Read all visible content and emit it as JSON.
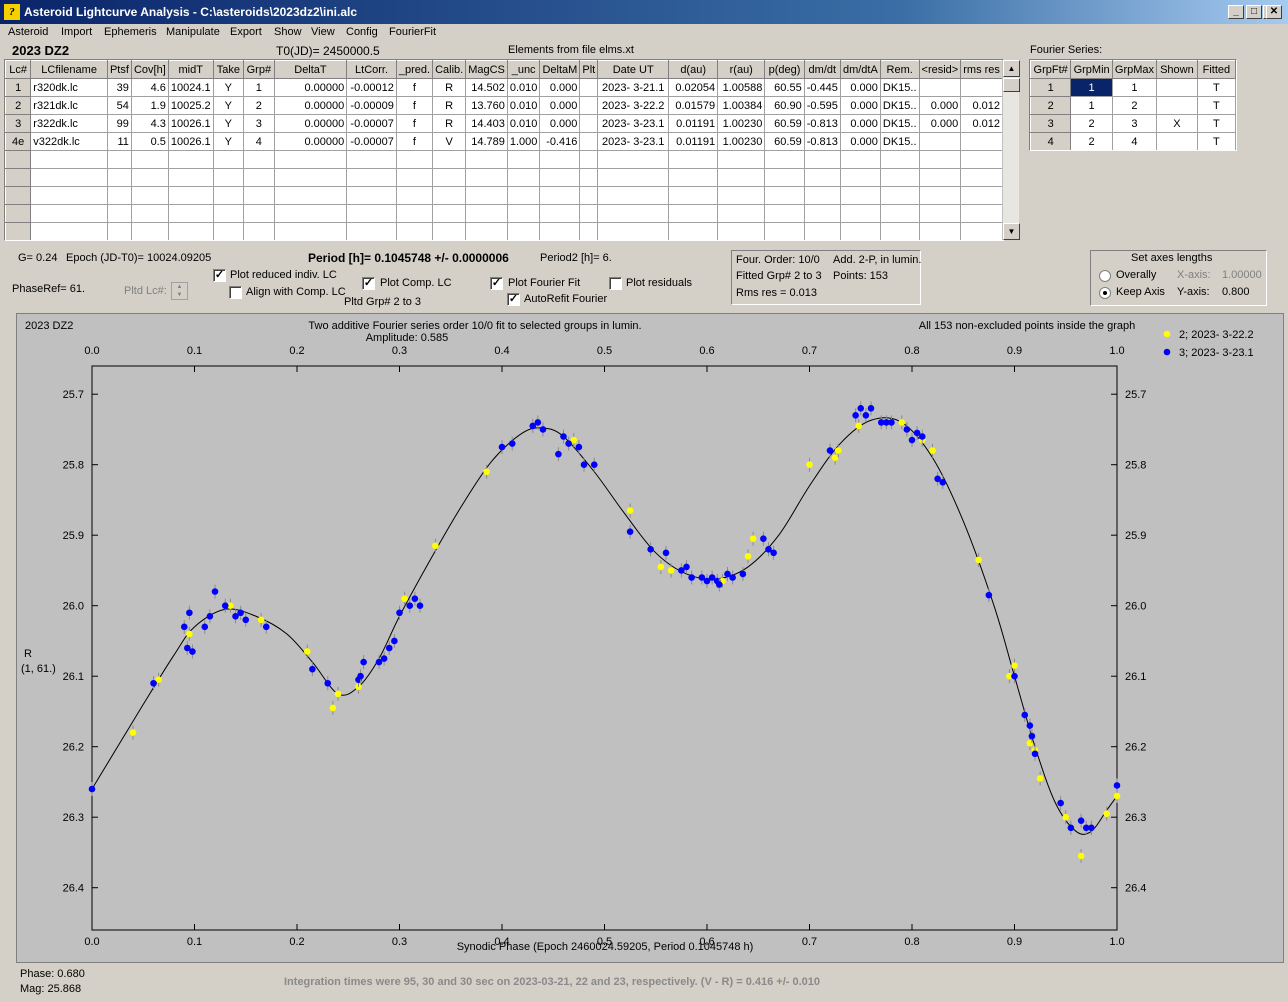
{
  "window": {
    "title": "Asteroid Lightcurve Analysis - C:\\asteroids\\2023dz2\\ini.alc",
    "icon": "app-logo-icon"
  },
  "menu": [
    "Asteroid",
    "Import",
    "Ephemeris",
    "Manipulate",
    "Export",
    "Show",
    "View",
    "Config",
    "FourierFit"
  ],
  "header": {
    "object_name": "2023 DZ2",
    "t0": "T0(JD)= 2450000.5",
    "elements_source": "Elements from file elms.xt"
  },
  "lc_table": {
    "columns": [
      "Lc#",
      "LCfilename",
      "Ptsf",
      "Cov[h]",
      "midT",
      "Take",
      "Grp#",
      "DeltaT",
      "LtCorr.",
      "_pred.",
      "Calib.",
      "MagCS",
      "_unc",
      "DeltaM",
      "Plt",
      "Date UT",
      "d(au)",
      "r(au)",
      "p(deg)",
      "dm/dt",
      "dm/dtA",
      "Rem.",
      "<resid>",
      "rms res"
    ],
    "rows": [
      [
        "1",
        "r320dk.lc",
        "39",
        "4.6",
        "10024.1",
        "Y",
        "1",
        "0.00000",
        "-0.00012",
        "f",
        "R",
        "14.502",
        "0.010",
        "0.000",
        "",
        "2023- 3-21.1",
        "0.02054",
        "1.00588",
        "60.55",
        "-0.445",
        "0.000",
        "DK15..",
        "",
        ""
      ],
      [
        "2",
        "r321dk.lc",
        "54",
        "1.9",
        "10025.2",
        "Y",
        "2",
        "0.00000",
        "-0.00009",
        "f",
        "R",
        "13.760",
        "0.010",
        "0.000",
        "",
        "2023- 3-22.2",
        "0.01579",
        "1.00384",
        "60.90",
        "-0.595",
        "0.000",
        "DK15..",
        "0.000",
        "0.012"
      ],
      [
        "3",
        "r322dk.lc",
        "99",
        "4.3",
        "10026.1",
        "Y",
        "3",
        "0.00000",
        "-0.00007",
        "f",
        "R",
        "14.403",
        "0.010",
        "0.000",
        "",
        "2023- 3-23.1",
        "0.01191",
        "1.00230",
        "60.59",
        "-0.813",
        "0.000",
        "DK15..",
        "0.000",
        "0.012"
      ],
      [
        "4e",
        "v322dk.lc",
        "11",
        "0.5",
        "10026.1",
        "Y",
        "4",
        "0.00000",
        "-0.00007",
        "f",
        "V",
        "14.789",
        "1.000",
        "-0.416",
        "",
        "2023- 3-23.1",
        "0.01191",
        "1.00230",
        "60.59",
        "-0.813",
        "0.000",
        "DK15..",
        "",
        ""
      ]
    ],
    "empty_rows": 5
  },
  "fourier_series": {
    "title": "Fourier Series:",
    "columns": [
      "GrpFt#",
      "GrpMin",
      "GrpMax",
      "Shown",
      "Fitted"
    ],
    "rows": [
      [
        "1",
        "1",
        "1",
        "",
        "T"
      ],
      [
        "2",
        "1",
        "2",
        "",
        "T"
      ],
      [
        "3",
        "2",
        "3",
        "X",
        "T"
      ],
      [
        "4",
        "2",
        "4",
        "",
        "T"
      ]
    ]
  },
  "info": {
    "g": "G= 0.24",
    "epoch": "Epoch (JD-T0)= 10024.09205",
    "period": "Period [h]= 0.1045748 +/- 0.0000006",
    "period2": "Period2 [h]= 6.",
    "phase_ref": "PhaseRef= 61.",
    "pltd_lc": "Pltd Lc#:",
    "pltd_grp": "Pltd Grp#  2  to  3"
  },
  "options": {
    "plot_reduced": {
      "label": "Plot reduced indiv. LC",
      "checked": true
    },
    "align_comp": {
      "label": "Align with Comp. LC",
      "checked": false
    },
    "plot_comp": {
      "label": "Plot Comp. LC",
      "checked": true
    },
    "plot_fourier": {
      "label": "Plot Fourier Fit",
      "checked": true
    },
    "autorefit": {
      "label": "AutoRefit Fourier",
      "checked": true
    },
    "plot_residuals": {
      "label": "Plot residuals",
      "checked": false
    }
  },
  "fit_info": {
    "order": "Four. Order: 10/0",
    "add": "Add. 2-P, in lumin.",
    "fitted": "Fitted Grp# 2 to 3",
    "points": "Points: 153",
    "rms": "Rms res     = 0.013"
  },
  "axes_box": {
    "title": "Set axes lengths",
    "overally": "Overally",
    "keep_axis": "Keep Axis",
    "x_label": "X-axis:",
    "x_value": "1.00000",
    "y_label": "Y-axis:",
    "y_value": "0.800",
    "selected": "keep_axis"
  },
  "status": {
    "phase": "Phase:  0.680",
    "mag": "Mag:    25.868",
    "integration": "Integration times were 95, 30 and 30 sec on 2023-03-21, 22 and 23, respectively.  (V - R) = 0.416 +/- 0.010"
  },
  "chart_data": {
    "type": "scatter",
    "object_label": "2023 DZ2",
    "title": "Two additive Fourier series order 10/0 fit to selected groups in lumin.",
    "subtitle": "Amplitude: 0.585",
    "note": "All 153 non-excluded points inside the graph",
    "xlabel": "Synodic Phase (Epoch 2460024.59205, Period 0.1045748 h)",
    "ylabel": "R",
    "ylabel2": "(1, 61.)",
    "xlim": [
      0.0,
      1.0
    ],
    "ylim": [
      26.46,
      25.66
    ],
    "y_inverted": true,
    "xticks": [
      0.0,
      0.1,
      0.2,
      0.3,
      0.4,
      0.5,
      0.6,
      0.7,
      0.8,
      0.9,
      1.0
    ],
    "xtick_labels": [
      "0.0",
      "0.1",
      "0.2",
      "0.3",
      "0.4",
      "0.5",
      "0.6",
      "0.7",
      "0.8",
      "0.9",
      "1.0"
    ],
    "yticks": [
      25.7,
      25.8,
      25.9,
      26.0,
      26.1,
      26.2,
      26.3,
      26.4
    ],
    "ytick_labels": [
      "25.7",
      "25.8",
      "25.9",
      "26.0",
      "26.1",
      "26.2",
      "26.3",
      "26.4"
    ],
    "grid": false,
    "legend_position": "top-right",
    "series": [
      {
        "name": "2; 2023- 3-22.2",
        "color": "#ffff00",
        "points": [
          [
            0.04,
            26.18
          ],
          [
            0.065,
            26.105
          ],
          [
            0.095,
            26.04
          ],
          [
            0.135,
            26.0
          ],
          [
            0.165,
            26.02
          ],
          [
            0.21,
            26.065
          ],
          [
            0.235,
            26.145
          ],
          [
            0.24,
            26.125
          ],
          [
            0.26,
            26.115
          ],
          [
            0.305,
            25.99
          ],
          [
            0.335,
            25.915
          ],
          [
            0.385,
            25.81
          ],
          [
            0.47,
            25.765
          ],
          [
            0.525,
            25.865
          ],
          [
            0.555,
            25.945
          ],
          [
            0.565,
            25.95
          ],
          [
            0.615,
            25.965
          ],
          [
            0.64,
            25.93
          ],
          [
            0.645,
            25.905
          ],
          [
            0.7,
            25.8
          ],
          [
            0.725,
            25.79
          ],
          [
            0.728,
            25.78
          ],
          [
            0.748,
            25.745
          ],
          [
            0.79,
            25.74
          ],
          [
            0.795,
            25.75
          ],
          [
            0.8,
            25.765
          ],
          [
            0.81,
            25.765
          ],
          [
            0.82,
            25.78
          ],
          [
            0.865,
            25.935
          ],
          [
            0.895,
            26.1
          ],
          [
            0.9,
            26.085
          ],
          [
            0.915,
            26.195
          ],
          [
            0.92,
            26.205
          ],
          [
            0.925,
            26.245
          ],
          [
            0.95,
            26.3
          ],
          [
            0.965,
            26.355
          ],
          [
            0.975,
            26.315
          ],
          [
            0.99,
            26.295
          ],
          [
            1.0,
            26.27
          ]
        ]
      },
      {
        "name": "3; 2023- 3-23.1",
        "color": "#0000ff",
        "points": [
          [
            0.0,
            26.26
          ],
          [
            0.06,
            26.11
          ],
          [
            0.09,
            26.03
          ],
          [
            0.093,
            26.06
          ],
          [
            0.095,
            26.01
          ],
          [
            0.098,
            26.065
          ],
          [
            0.11,
            26.03
          ],
          [
            0.115,
            26.015
          ],
          [
            0.12,
            25.98
          ],
          [
            0.13,
            26.0
          ],
          [
            0.14,
            26.015
          ],
          [
            0.145,
            26.01
          ],
          [
            0.15,
            26.02
          ],
          [
            0.17,
            26.03
          ],
          [
            0.215,
            26.09
          ],
          [
            0.23,
            26.11
          ],
          [
            0.26,
            26.105
          ],
          [
            0.262,
            26.1
          ],
          [
            0.265,
            26.08
          ],
          [
            0.28,
            26.08
          ],
          [
            0.285,
            26.075
          ],
          [
            0.29,
            26.06
          ],
          [
            0.295,
            26.05
          ],
          [
            0.3,
            26.01
          ],
          [
            0.31,
            26.0
          ],
          [
            0.315,
            25.99
          ],
          [
            0.32,
            26.0
          ],
          [
            0.4,
            25.775
          ],
          [
            0.41,
            25.77
          ],
          [
            0.43,
            25.745
          ],
          [
            0.435,
            25.74
          ],
          [
            0.44,
            25.75
          ],
          [
            0.455,
            25.785
          ],
          [
            0.46,
            25.76
          ],
          [
            0.465,
            25.77
          ],
          [
            0.475,
            25.775
          ],
          [
            0.48,
            25.8
          ],
          [
            0.49,
            25.8
          ],
          [
            0.525,
            25.895
          ],
          [
            0.545,
            25.92
          ],
          [
            0.56,
            25.925
          ],
          [
            0.575,
            25.95
          ],
          [
            0.58,
            25.945
          ],
          [
            0.585,
            25.96
          ],
          [
            0.595,
            25.96
          ],
          [
            0.6,
            25.965
          ],
          [
            0.605,
            25.96
          ],
          [
            0.61,
            25.965
          ],
          [
            0.612,
            25.97
          ],
          [
            0.62,
            25.955
          ],
          [
            0.625,
            25.96
          ],
          [
            0.635,
            25.955
          ],
          [
            0.655,
            25.905
          ],
          [
            0.66,
            25.92
          ],
          [
            0.665,
            25.925
          ],
          [
            0.72,
            25.78
          ],
          [
            0.745,
            25.73
          ],
          [
            0.75,
            25.72
          ],
          [
            0.755,
            25.73
          ],
          [
            0.76,
            25.72
          ],
          [
            0.77,
            25.74
          ],
          [
            0.775,
            25.74
          ],
          [
            0.78,
            25.74
          ],
          [
            0.795,
            25.75
          ],
          [
            0.805,
            25.755
          ],
          [
            0.8,
            25.765
          ],
          [
            0.81,
            25.76
          ],
          [
            0.825,
            25.82
          ],
          [
            0.83,
            25.825
          ],
          [
            0.875,
            25.985
          ],
          [
            0.9,
            26.1
          ],
          [
            0.91,
            26.155
          ],
          [
            0.915,
            26.17
          ],
          [
            0.917,
            26.185
          ],
          [
            0.92,
            26.21
          ],
          [
            0.945,
            26.28
          ],
          [
            0.955,
            26.315
          ],
          [
            0.965,
            26.305
          ],
          [
            0.97,
            26.315
          ],
          [
            0.975,
            26.315
          ],
          [
            1.0,
            26.255
          ]
        ]
      }
    ]
  }
}
